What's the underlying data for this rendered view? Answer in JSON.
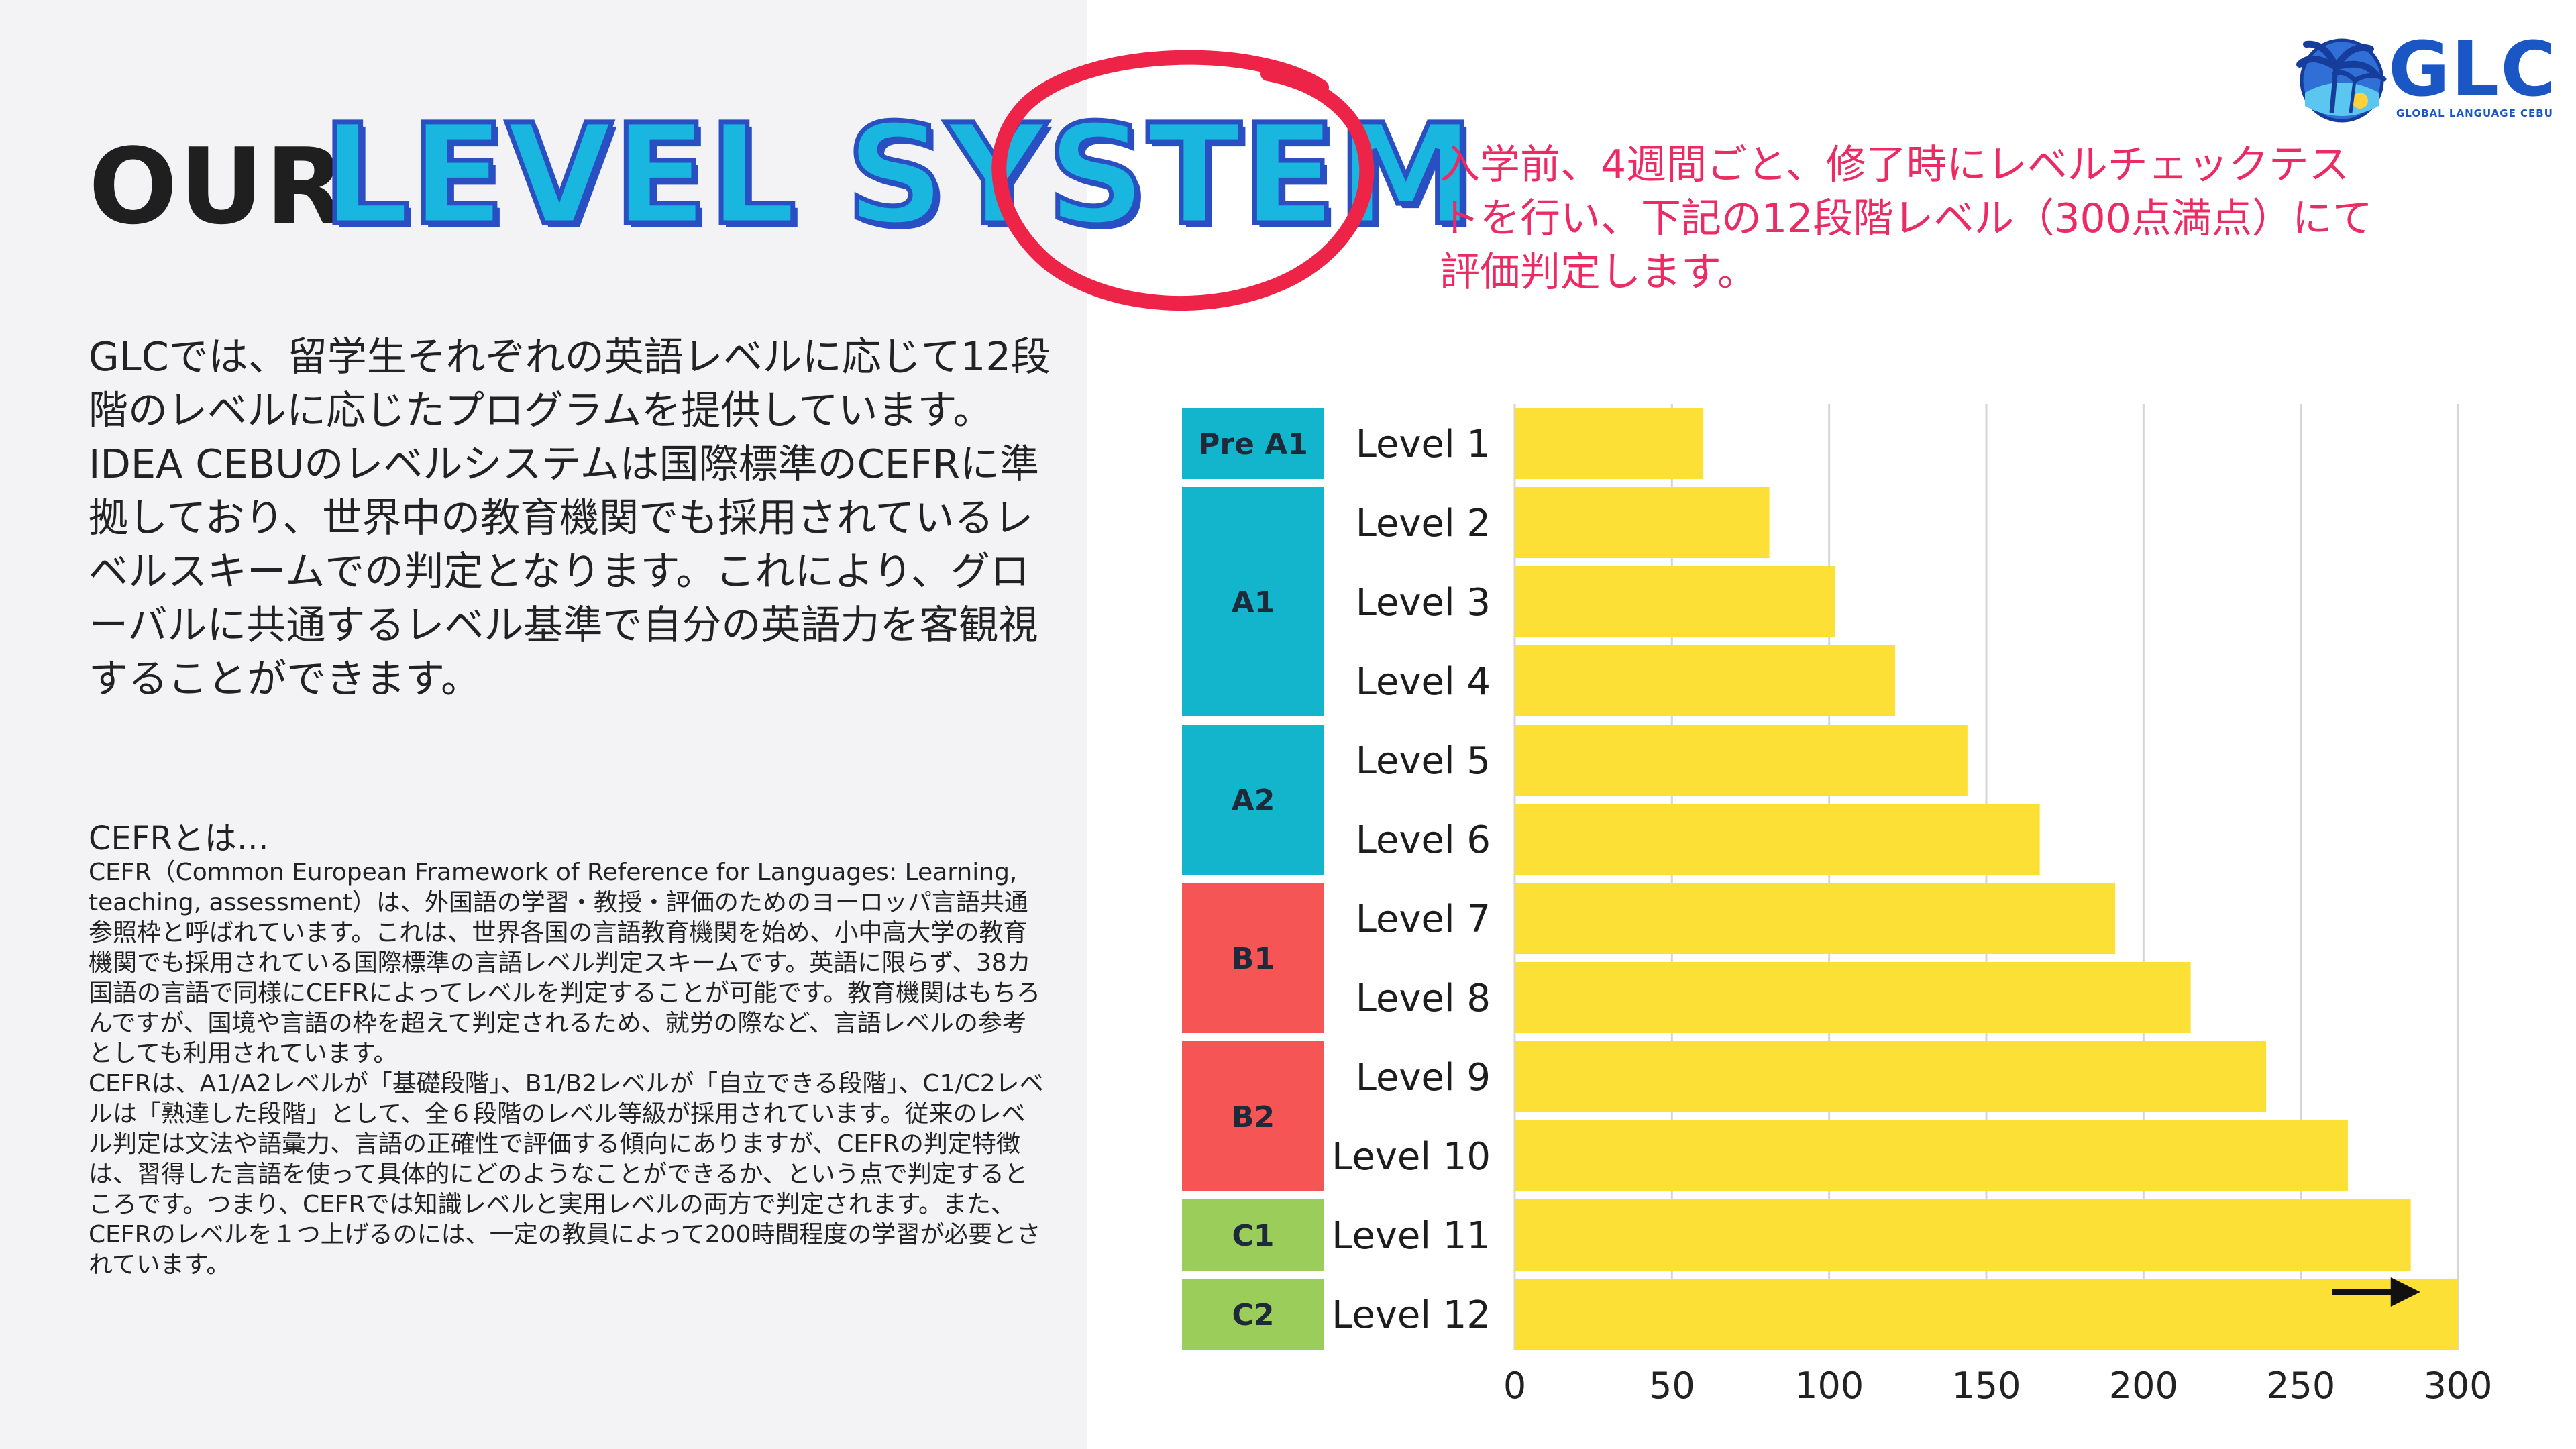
{
  "title": {
    "prefix": "OUR",
    "main": "LEVEL SYSTEM"
  },
  "logo": {
    "name": "GLC",
    "subtitle": "GLOBAL LANGUAGE CEBU"
  },
  "intro": "GLCでは、留学生それぞれの英語レベルに応じて12段階のレベルに応じたプログラムを提供しています。IDEA CEBUのレベルシステムは国際標準のCEFRに準拠しており、世界中の教育機関でも採用されているレベルスキームでの判定となります。これにより、グローバルに共通するレベル基準で自分の英語力を客観視することができます。",
  "cefr": {
    "heading": "CEFRとは…",
    "body": "CEFR（Common European Framework of Reference for Languages: Learning, teaching, assessment）は、外国語の学習・教授・評価のためのヨーロッパ言語共通参照枠と呼ばれています。これは、世界各国の言語教育機関を始め、小中高大学の教育機関でも採用されている国際標準の言語レベル判定スキームです。英語に限らず、38カ国語の言語で同様にCEFRによってレベルを判定することが可能です。教育機関はもちろんですが、国境や言語の枠を超えて判定されるため、就労の際など、言語レベルの参考としても利用されています。\nCEFRは、A1/A2レベルが「基礎段階」、B1/B2レベルが「自立できる段階」、C1/C2レベルは「熟達した段階」として、全６段階のレベル等級が採用されています。従来のレベル判定は文法や語彙力、言語の正確性で評価する傾向にありますが、CEFRの判定特徴は、習得した言語を使って具体的にどのようなことができるか、という点で判定するところです。つまり、CEFRでは知識レベルと実用レベルの両方で判定されます。また、CEFRのレベルを１つ上げるのには、一定の教員によって200時間程度の学習が必要とされています。"
  },
  "note": "入学前、4週間ごと、修了時にレベルチェックテストを行い、下記の12段階レベル（300点満点）にて評価判定します。",
  "chart_data": {
    "type": "bar",
    "orientation": "horizontal",
    "categories": [
      "Level 1",
      "Level 2",
      "Level 3",
      "Level 4",
      "Level 5",
      "Level 6",
      "Level 7",
      "Level 8",
      "Level 9",
      "Level 10",
      "Level 11",
      "Level 12"
    ],
    "values": [
      60,
      81,
      102,
      121,
      144,
      167,
      191,
      215,
      239,
      265,
      285,
      300
    ],
    "xlim": [
      0,
      300
    ],
    "xticks": [
      0,
      50,
      100,
      150,
      200,
      250,
      300
    ],
    "grid": true,
    "bar_color": "#fde035",
    "groups": [
      {
        "label": "Pre A1",
        "start": 0,
        "end": 0,
        "color": "#12b5cb"
      },
      {
        "label": "A1",
        "start": 1,
        "end": 3,
        "color": "#12b5cb"
      },
      {
        "label": "A2",
        "start": 4,
        "end": 5,
        "color": "#12b5cb"
      },
      {
        "label": "B1",
        "start": 6,
        "end": 7,
        "color": "#f55555"
      },
      {
        "label": "B2",
        "start": 8,
        "end": 9,
        "color": "#f55555"
      },
      {
        "label": "C1",
        "start": 10,
        "end": 10,
        "color": "#9bcd5b"
      },
      {
        "label": "C2",
        "start": 11,
        "end": 11,
        "color": "#9bcd5b"
      }
    ],
    "annotation": {
      "type": "arrow",
      "category": "Level 12",
      "from": 260,
      "to": 288
    }
  }
}
